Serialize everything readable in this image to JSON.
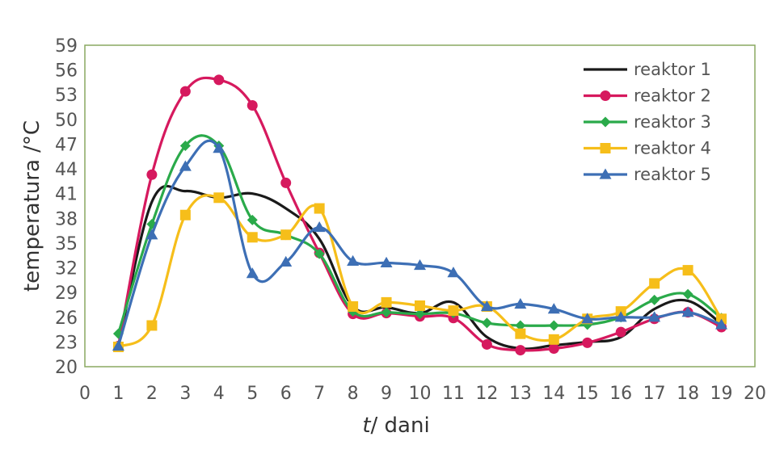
{
  "chart_data": {
    "type": "line",
    "title": "",
    "xlabel_italic": "t",
    "xlabel_rest": "/ dani",
    "ylabel": "temperatura /°C",
    "xlim": [
      0,
      20
    ],
    "ylim": [
      20,
      59
    ],
    "xticks": [
      0,
      1,
      2,
      3,
      4,
      5,
      6,
      7,
      8,
      9,
      10,
      11,
      12,
      13,
      14,
      15,
      16,
      17,
      18,
      19,
      20
    ],
    "yticks": [
      20,
      23,
      26,
      29,
      32,
      35,
      38,
      41,
      44,
      47,
      50,
      53,
      56,
      59
    ],
    "grid": false,
    "legend_position": "top-right",
    "x": [
      1,
      2,
      3,
      4,
      5,
      6,
      7,
      8,
      9,
      10,
      11,
      12,
      13,
      14,
      15,
      16,
      17,
      18,
      19
    ],
    "series": [
      {
        "name": "reaktor 1",
        "color": "#1a1a1a",
        "marker": "none",
        "values": [
          22.5,
          40.0,
          41.3,
          40.5,
          41.0,
          39.2,
          35.5,
          27.3,
          27.2,
          26.5,
          27.8,
          23.6,
          22.2,
          22.6,
          23.0,
          23.6,
          27.0,
          28.0,
          25.2
        ]
      },
      {
        "name": "reaktor 2",
        "color": "#d6195e",
        "marker": "circle",
        "values": [
          22.5,
          43.3,
          53.4,
          54.8,
          51.7,
          42.3,
          33.8,
          26.4,
          26.5,
          26.1,
          25.9,
          22.7,
          22.0,
          22.2,
          22.9,
          24.2,
          25.8,
          26.6,
          24.8
        ]
      },
      {
        "name": "reaktor 3",
        "color": "#2aaa4a",
        "marker": "diamond",
        "values": [
          24.0,
          37.3,
          46.8,
          46.8,
          37.8,
          36.0,
          33.7,
          26.7,
          26.6,
          26.4,
          26.5,
          25.3,
          25.0,
          25.0,
          25.1,
          26.0,
          28.1,
          28.8,
          25.9
        ]
      },
      {
        "name": "reaktor 4",
        "color": "#f6be1a",
        "marker": "square",
        "values": [
          22.4,
          25.0,
          38.4,
          40.5,
          35.7,
          36.0,
          39.2,
          27.3,
          27.8,
          27.4,
          26.8,
          27.3,
          24.0,
          23.3,
          25.8,
          26.7,
          30.1,
          31.7,
          25.8
        ]
      },
      {
        "name": "reaktor 5",
        "color": "#3d6fb5",
        "marker": "triangle",
        "values": [
          22.5,
          36.0,
          44.3,
          46.5,
          31.3,
          32.7,
          36.9,
          32.8,
          32.6,
          32.3,
          31.4,
          27.3,
          27.6,
          27.0,
          25.8,
          26.0,
          26.0,
          26.6,
          25.1
        ]
      }
    ]
  }
}
